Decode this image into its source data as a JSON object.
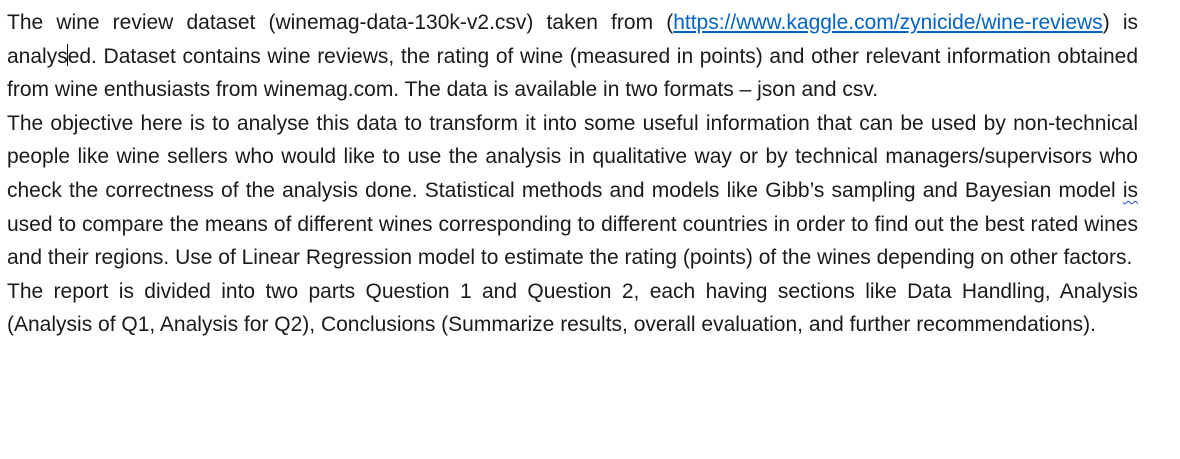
{
  "document": {
    "p1": {
      "before_link": "The wine review dataset (winemag-data-130k-v2.csv) taken from (",
      "link_text": "https://www.kaggle.com/zynicide/wine-reviews",
      "after_link_1": ") is analys",
      "after_link_2": "ed. Dataset contains wine reviews, the rating of wine (measured in points) and other relevant information obtained from wine enthusiasts from winemag.com. The data is available in two formats – json and csv."
    },
    "p2": {
      "before_flag": "The objective here is to analyse this data to transform it into some useful information that can be used by non-technical people like wine sellers who would like to use the analysis in qualitative way or by technical managers/supervisors who check the correctness of the analysis done. Statistical methods and models like Gibb’s sampling and Bayesian model ",
      "flagged_word": "is",
      "after_flag": " used to compare the means of different wines corresponding to different countries in order to find out the best rated wines and their regions. Use of Linear Regression model to estimate the rating (points) of the wines depending on other factors."
    },
    "p3": {
      "text": "The report is divided into two parts Question 1 and Question 2, each having sections like Data Handling, Analysis (Analysis of Q1, Analysis for Q2), Conclusions (Summarize results, overall evaluation, and further recommendations)."
    }
  }
}
